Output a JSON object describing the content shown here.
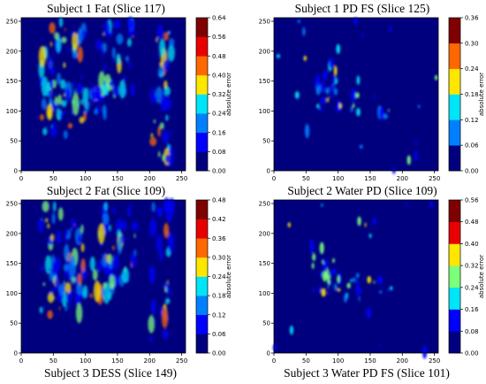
{
  "colors": {
    "background": "#00007f",
    "colormap": [
      "#00007f",
      "#0000ff",
      "#0080ff",
      "#00e4f8",
      "#7cff79",
      "#ffe600",
      "#ff6800",
      "#e80000",
      "#7f0000"
    ]
  },
  "chart_data": [
    {
      "type": "heatmap",
      "title": "Subject 1 Fat (Slice 117)",
      "xlim": [
        0,
        256
      ],
      "ylim": [
        0,
        256
      ],
      "xticks": [
        "0",
        "50",
        "100",
        "150",
        "200",
        "250"
      ],
      "yticks": [
        "0",
        "50",
        "100",
        "150",
        "200",
        "250"
      ],
      "colorbar_label": "absolute error",
      "colorbar_ticks": [
        "0.00",
        "0.08",
        "0.16",
        "0.24",
        "0.32",
        "0.40",
        "0.48",
        "0.56",
        "0.64"
      ],
      "colorbar_range": [
        0,
        0.64
      ]
    },
    {
      "type": "heatmap",
      "title": "Subject 1 PD FS (Slice 125)",
      "xlim": [
        0,
        256
      ],
      "ylim": [
        0,
        256
      ],
      "xticks": [
        "0",
        "50",
        "100",
        "150",
        "200",
        "250"
      ],
      "yticks": [
        "0",
        "50",
        "100",
        "150",
        "200",
        "250"
      ],
      "colorbar_label": "absolute error",
      "colorbar_ticks": [
        "0.00",
        "0.06",
        "0.12",
        "0.18",
        "0.24",
        "0.30",
        "0.36"
      ],
      "colorbar_range": [
        0,
        0.36
      ]
    },
    {
      "type": "heatmap",
      "title": "Subject 2 Fat (Slice 109)",
      "xlim": [
        0,
        256
      ],
      "ylim": [
        0,
        256
      ],
      "xticks": [
        "0",
        "50",
        "100",
        "150",
        "200",
        "250"
      ],
      "yticks": [
        "0",
        "50",
        "100",
        "150",
        "200",
        "250"
      ],
      "colorbar_label": "absolute error",
      "colorbar_ticks": [
        "0.00",
        "0.06",
        "0.12",
        "0.18",
        "0.24",
        "0.30",
        "0.36",
        "0.42",
        "0.48"
      ],
      "colorbar_range": [
        0,
        0.48
      ]
    },
    {
      "type": "heatmap",
      "title": "Subject 2 Water PD (Slice 109)",
      "xlim": [
        0,
        256
      ],
      "ylim": [
        0,
        256
      ],
      "xticks": [
        "0",
        "50",
        "100",
        "150",
        "200",
        "250"
      ],
      "yticks": [
        "0",
        "50",
        "100",
        "150",
        "200",
        "250"
      ],
      "colorbar_label": "absolute error",
      "colorbar_ticks": [
        "0.00",
        "0.08",
        "0.16",
        "0.24",
        "0.32",
        "0.40",
        "0.48",
        "0.56"
      ],
      "colorbar_range": [
        0,
        0.56
      ]
    }
  ],
  "captions": {
    "bottom_left": "Subject 3 DESS (Slice 149)",
    "bottom_right": "Subject 3 Water PD FS (Slice 101)"
  }
}
